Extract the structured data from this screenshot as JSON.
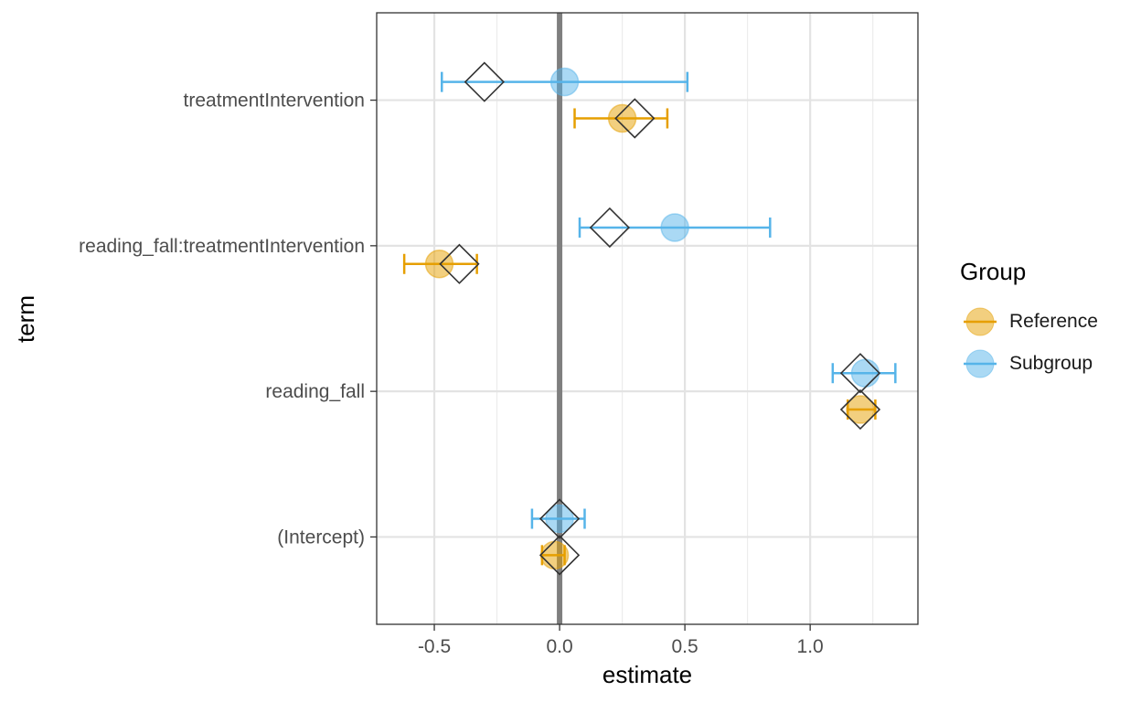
{
  "chart_data": {
    "type": "scatter",
    "xlabel": "estimate",
    "ylabel": "term",
    "xlim": [
      -0.73,
      1.43
    ],
    "x_ticks": [
      -0.5,
      0.0,
      0.5,
      1.0
    ],
    "x_tick_labels": [
      "-0.5",
      "0.0",
      "0.5",
      "1.0"
    ],
    "categories": [
      "(Intercept)",
      "reading_fall",
      "reading_fall:treatmentIntervention",
      "treatmentIntervention"
    ],
    "reference_line": 0,
    "grid": true,
    "legend": {
      "title": "Group",
      "position": "right",
      "items": [
        {
          "label": "Reference",
          "color": "#E69F00"
        },
        {
          "label": "Subgroup",
          "color": "#56B4E9"
        }
      ]
    },
    "series": [
      {
        "name": "Reference",
        "color": "#E69F00",
        "points": [
          {
            "term": "(Intercept)",
            "estimate": -0.02,
            "lower": -0.07,
            "upper": 0.02,
            "benchmark": 0.0
          },
          {
            "term": "reading_fall",
            "estimate": 1.2,
            "lower": 1.15,
            "upper": 1.26,
            "benchmark": 1.2
          },
          {
            "term": "reading_fall:treatmentIntervention",
            "estimate": -0.48,
            "lower": -0.62,
            "upper": -0.33,
            "benchmark": -0.4
          },
          {
            "term": "treatmentIntervention",
            "estimate": 0.25,
            "lower": 0.06,
            "upper": 0.43,
            "benchmark": 0.3
          }
        ]
      },
      {
        "name": "Subgroup",
        "color": "#56B4E9",
        "points": [
          {
            "term": "(Intercept)",
            "estimate": 0.0,
            "lower": -0.11,
            "upper": 0.1,
            "benchmark": 0.0
          },
          {
            "term": "reading_fall",
            "estimate": 1.22,
            "lower": 1.09,
            "upper": 1.34,
            "benchmark": 1.2
          },
          {
            "term": "reading_fall:treatmentIntervention",
            "estimate": 0.46,
            "lower": 0.08,
            "upper": 0.84,
            "benchmark": 0.2
          },
          {
            "term": "treatmentIntervention",
            "estimate": 0.02,
            "lower": -0.47,
            "upper": 0.51,
            "benchmark": -0.3
          }
        ]
      }
    ]
  }
}
